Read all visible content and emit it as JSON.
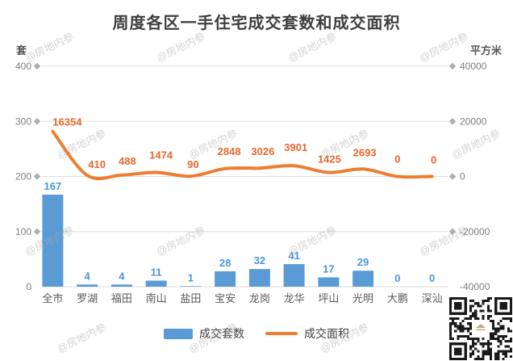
{
  "title": "周度各区一手住宅成交套数和成交面积",
  "watermark": "@房地内参",
  "chart_data": {
    "type": "bar",
    "title": "周度各区一手住宅成交套数和成交面积",
    "categories": [
      "全市",
      "罗湖",
      "福田",
      "南山",
      "盐田",
      "宝安",
      "龙岗",
      "龙华",
      "坪山",
      "光明",
      "大鹏",
      "深汕"
    ],
    "series": [
      {
        "name": "成交套数",
        "type": "bar",
        "axis": "left",
        "color": "#5B9BD5",
        "label_color": "#4D96D6",
        "values": [
          167,
          4,
          4,
          11,
          1,
          28,
          32,
          41,
          17,
          29,
          0,
          0
        ]
      },
      {
        "name": "成交面积",
        "type": "line",
        "axis": "right",
        "color": "#ED7D31",
        "label_color": "#E8672C",
        "values": [
          16354,
          410,
          488,
          1474,
          90,
          2848,
          3026,
          3901,
          1425,
          2693,
          0,
          0
        ]
      }
    ],
    "left_axis": {
      "unit": "套",
      "min": 0,
      "max": 400,
      "ticks": [
        400,
        300,
        200,
        100,
        0
      ],
      "tick_labels": [
        "400",
        "300",
        "200",
        "100",
        "0"
      ]
    },
    "right_axis": {
      "unit": "平方米",
      "min": -40000,
      "max": 40000,
      "ticks": [
        40000,
        20000,
        0,
        -20000,
        -40000
      ],
      "tick_labels": [
        "40000",
        "20000",
        "0",
        "-20000",
        "-40000"
      ]
    },
    "legend": [
      "成交套数",
      "成交面积"
    ],
    "legend_position": "bottom",
    "grid": true,
    "grid_color": "#dddddd",
    "tick_diamond_color": "#afafaf"
  }
}
